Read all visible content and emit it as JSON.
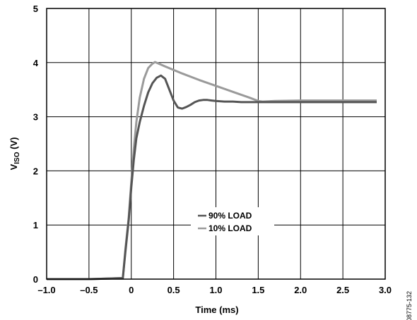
{
  "chart_data": {
    "type": "line",
    "xlabel": "Time (ms)",
    "ylabel_main": "V",
    "ylabel_sub": "ISO",
    "ylabel_unit": " (V)",
    "xlim": [
      -1.0,
      3.0
    ],
    "ylim": [
      0,
      5
    ],
    "x_ticks": [
      -1.0,
      -0.5,
      0,
      0.5,
      1.0,
      1.5,
      2.0,
      2.5,
      3.0
    ],
    "x_tick_labels": [
      "–1.0",
      "–0.5",
      "0",
      "0.5",
      "1.0",
      "1.5",
      "2.0",
      "2.5",
      "3.0"
    ],
    "y_ticks": [
      0,
      1,
      2,
      3,
      4,
      5
    ],
    "y_tick_labels": [
      "0",
      "1",
      "2",
      "3",
      "4",
      "5"
    ],
    "grid": true,
    "legend_placement": "bottom-center",
    "series": [
      {
        "name": "90% LOAD",
        "color": "#555555",
        "x": [
          -1.0,
          -0.5,
          -0.1,
          -0.07,
          -0.03,
          0.0,
          0.03,
          0.06,
          0.1,
          0.15,
          0.2,
          0.25,
          0.3,
          0.35,
          0.4,
          0.45,
          0.5,
          0.55,
          0.6,
          0.65,
          0.7,
          0.75,
          0.8,
          0.85,
          0.9,
          0.95,
          1.0,
          1.1,
          1.2,
          1.3,
          1.4,
          1.5,
          1.6,
          1.8,
          2.0,
          2.2,
          2.4,
          2.6,
          2.8,
          2.9
        ],
        "y": [
          0.0,
          0.0,
          0.02,
          0.5,
          1.1,
          1.7,
          2.2,
          2.6,
          2.9,
          3.2,
          3.45,
          3.62,
          3.72,
          3.76,
          3.7,
          3.5,
          3.3,
          3.17,
          3.15,
          3.18,
          3.22,
          3.27,
          3.3,
          3.31,
          3.31,
          3.3,
          3.29,
          3.28,
          3.28,
          3.27,
          3.27,
          3.27,
          3.27,
          3.27,
          3.27,
          3.27,
          3.27,
          3.27,
          3.27,
          3.27
        ]
      },
      {
        "name": "10% LOAD",
        "color": "#9a9a9a",
        "x": [
          -1.0,
          -0.5,
          -0.1,
          -0.07,
          -0.03,
          0.0,
          0.03,
          0.06,
          0.1,
          0.15,
          0.2,
          0.25,
          0.28,
          0.4,
          0.6,
          0.8,
          1.0,
          1.2,
          1.4,
          1.5,
          1.55,
          1.7,
          2.0,
          2.3,
          2.6,
          2.9
        ],
        "y": [
          0.0,
          0.0,
          0.02,
          0.55,
          1.15,
          1.8,
          2.4,
          2.9,
          3.35,
          3.7,
          3.9,
          3.98,
          4.01,
          3.93,
          3.8,
          3.68,
          3.57,
          3.46,
          3.35,
          3.29,
          3.28,
          3.29,
          3.3,
          3.3,
          3.3,
          3.3
        ]
      }
    ]
  },
  "figure_id": "08775-132"
}
